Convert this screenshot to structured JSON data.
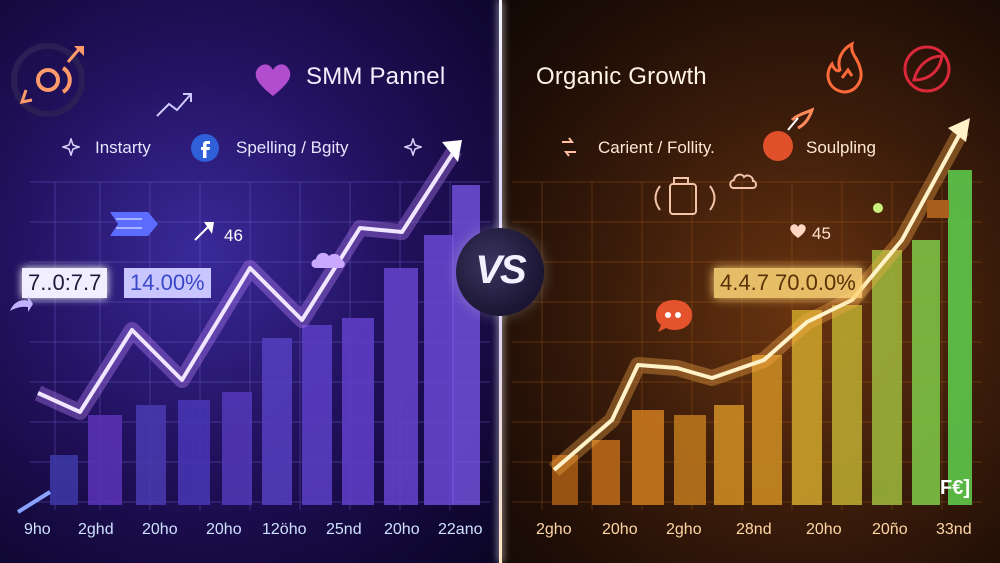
{
  "left": {
    "title": "SMM Pannel",
    "features": [
      "Instarty",
      "Spelling / Bgity"
    ],
    "annotation": "46",
    "value_primary": "7..0:7.7",
    "value_secondary": "14.00%",
    "x_ticks": [
      "9ho",
      "2ghd",
      "20ho",
      "20ho",
      "12öho",
      "25nd",
      "20ho",
      "22ano"
    ],
    "accent": "#b678ff"
  },
  "right": {
    "title": "Organic Growth",
    "features": [
      "Carient / Follity.",
      "Soulpling"
    ],
    "annotation": "45",
    "value_primary": "4.4.7 70.0.0%",
    "x_ticks": [
      "2gho",
      "20ho",
      "2gho",
      "28nd",
      "20ho",
      "20ño",
      "33nd"
    ],
    "accent": "#ffb24a"
  },
  "center": {
    "vs": "VS"
  },
  "icons": [
    "growth-logo-icon",
    "heart-icon",
    "facebook-icon",
    "trend-arrow-icon",
    "cloud-icon",
    "flame-icon",
    "chat-icon",
    "leaf-icon",
    "rocket-icon"
  ]
}
